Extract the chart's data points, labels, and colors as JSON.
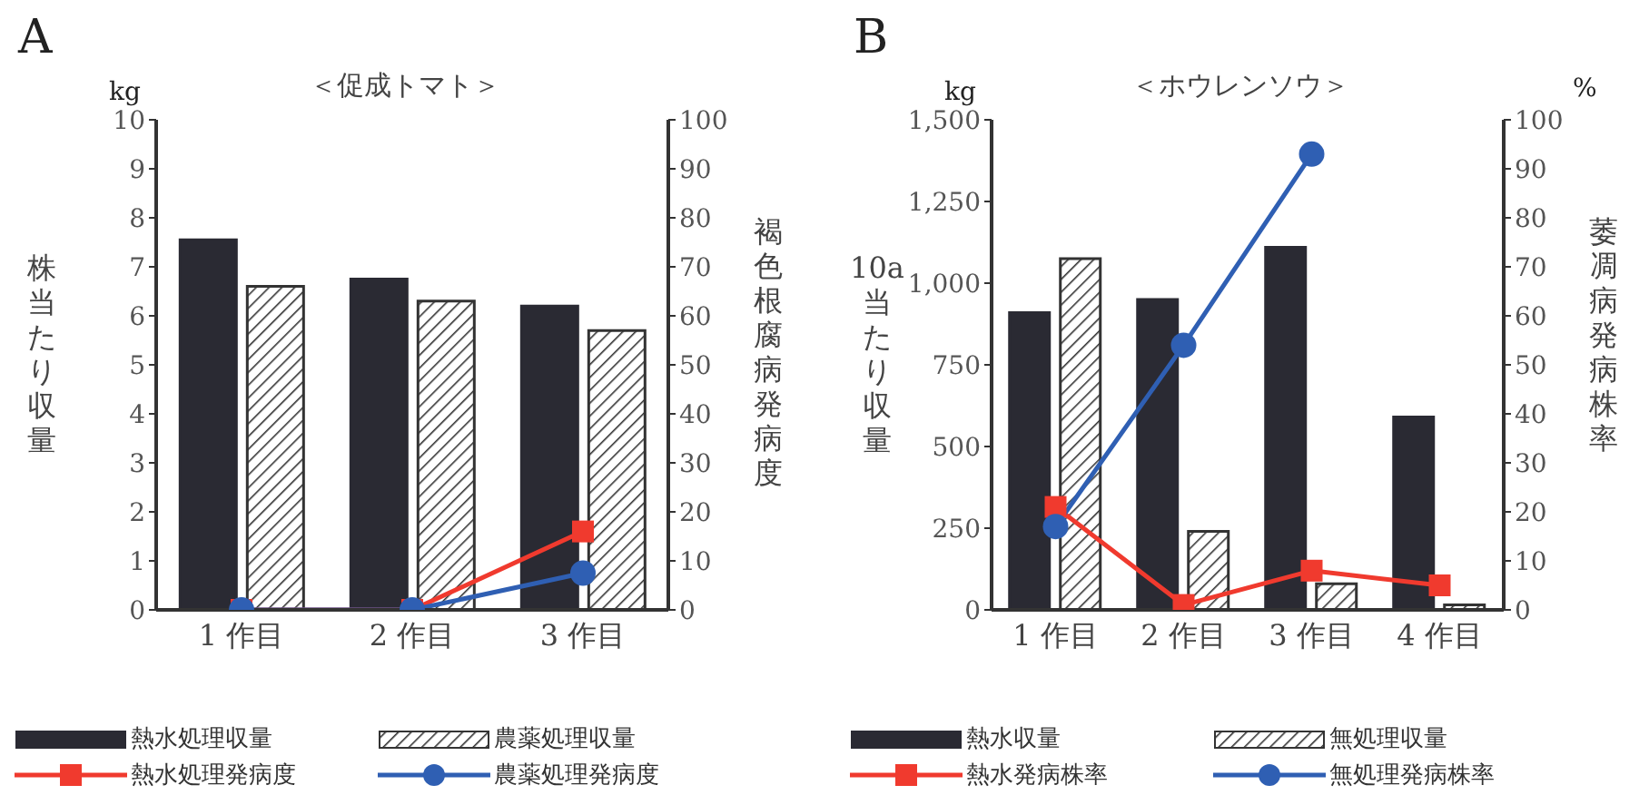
{
  "chart_data": [
    {
      "type": "bar",
      "title": "＜促成トマト＞",
      "ylabel": "株当たり収量",
      "y2label": "褐色根腐病発病度",
      "annotations": [
        "A",
        "kg"
      ],
      "categories": [
        "1 作目",
        "2 作目",
        "3 作目"
      ],
      "series": [
        {
          "name": "熱水処理収量",
          "color": "#2a2a33",
          "values": [
            7.55,
            6.75,
            6.2
          ]
        },
        {
          "name": "農薬処理収量",
          "color": "#333333",
          "values": [
            6.6,
            6.3,
            5.7
          ]
        },
        {
          "name": "熱水処理発病度",
          "type": "line",
          "axis": "y2",
          "marker": "square",
          "color": "#f03a2e",
          "values": [
            0,
            0,
            16
          ]
        },
        {
          "name": "農薬処理発病度",
          "type": "line",
          "axis": "y2",
          "marker": "circle",
          "color": "#2f5fb3",
          "values": [
            0,
            0,
            7.5
          ]
        }
      ],
      "ylim": [
        0,
        10
      ],
      "yticks": [
        0,
        1,
        2,
        3,
        4,
        5,
        6,
        7,
        8,
        9,
        10
      ],
      "y2lim": [
        0,
        100
      ],
      "y2ticks": [
        0,
        10,
        20,
        30,
        40,
        50,
        60,
        70,
        80,
        90,
        100
      ],
      "grid": false,
      "legend": "bottom"
    },
    {
      "type": "bar",
      "title": "＜ホウレンソウ＞",
      "ylabel": "10a当たり収量",
      "y2label": "萎凋病発病株率",
      "annotations": [
        "B",
        "kg",
        "%"
      ],
      "categories": [
        "1 作目",
        "2 作目",
        "3 作目",
        "4 作目"
      ],
      "series": [
        {
          "name": "熱水収量",
          "color": "#2a2a33",
          "values": [
            910,
            950,
            1110,
            590
          ]
        },
        {
          "name": "無処理収量",
          "color": "#333333",
          "values": [
            1075,
            240,
            80,
            15
          ]
        },
        {
          "name": "熱水発病株率",
          "type": "line",
          "axis": "y2",
          "marker": "square",
          "color": "#f03a2e",
          "values": [
            21,
            1,
            8,
            5
          ]
        },
        {
          "name": "無処理発病株率",
          "type": "line",
          "axis": "y2",
          "marker": "circle",
          "color": "#2f5fb3",
          "values": [
            17,
            54,
            93,
            null
          ]
        }
      ],
      "ylim": [
        0,
        1500
      ],
      "yticks": [
        0,
        {
          "value": 250,
          "label": "250"
        },
        {
          "value": 500,
          "label": "500"
        },
        {
          "value": 750,
          "label": "750"
        },
        {
          "value": 1000,
          "label": "1,000"
        },
        {
          "value": 1250,
          "label": "1,250"
        },
        {
          "value": 1500,
          "label": "1,500"
        }
      ],
      "y2lim": [
        0,
        100
      ],
      "y2ticks": [
        0,
        10,
        20,
        30,
        40,
        50,
        60,
        70,
        80,
        90,
        100
      ],
      "grid": false,
      "legend": "bottom"
    }
  ]
}
